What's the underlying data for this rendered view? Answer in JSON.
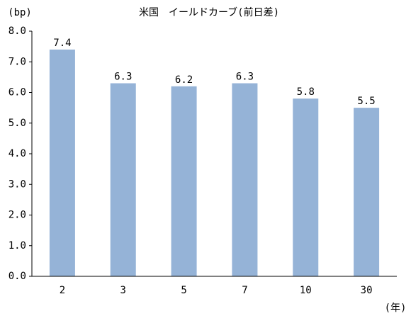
{
  "chart_data": {
    "type": "bar",
    "title": "米国　イールドカーブ(前日差)",
    "y_label": "(bp)",
    "x_label": "(年)",
    "categories": [
      "2",
      "3",
      "5",
      "7",
      "10",
      "30"
    ],
    "values": [
      7.4,
      6.3,
      6.2,
      6.3,
      5.8,
      5.5
    ],
    "color": "#95b3d7",
    "ylim": [
      0,
      8
    ],
    "yticks": [
      {
        "value": 0,
        "label": "0.0"
      },
      {
        "value": 1,
        "label": "1.0"
      },
      {
        "value": 2,
        "label": "2.0"
      },
      {
        "value": 3,
        "label": "3.0"
      },
      {
        "value": 4,
        "label": "4.0"
      },
      {
        "value": 5,
        "label": "5.0"
      },
      {
        "value": 6,
        "label": "6.0"
      },
      {
        "value": 7,
        "label": "7.0"
      },
      {
        "value": 8,
        "label": "8.0"
      }
    ],
    "grid": false
  }
}
